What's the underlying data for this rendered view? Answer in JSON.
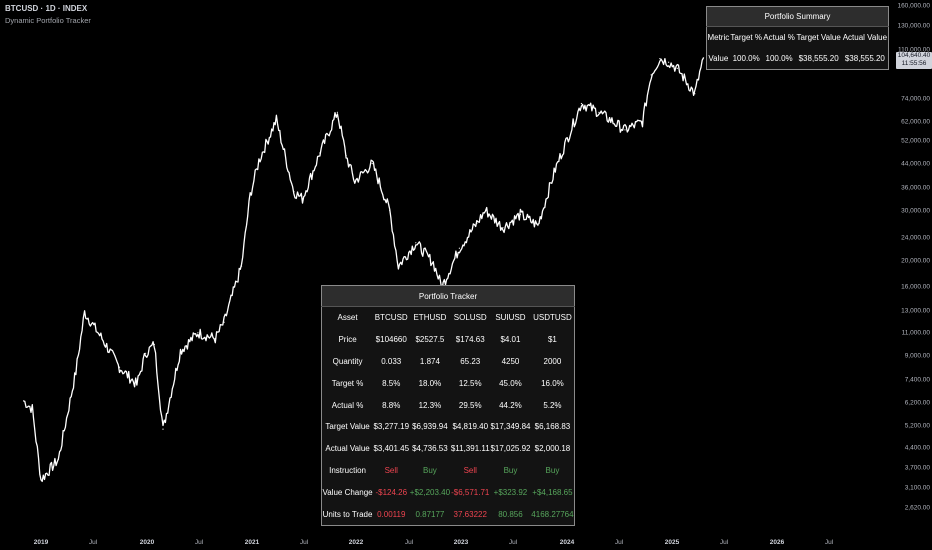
{
  "header": {
    "symbol_line": "BTCUSD · 1D · INDEX",
    "indicator_name": "Dynamic Portfolio Tracker"
  },
  "colors": {
    "background": "#000000",
    "price_line": "#ffffff",
    "sell": "#ef4450",
    "buy": "#57a65c",
    "table_bg": "#131313",
    "table_header_bg": "#2d2d2d"
  },
  "price_scale": {
    "ticks": [
      "160,000.00",
      "130,000.00",
      "110,000.00",
      "74,000.00",
      "62,000.00",
      "52,000.00",
      "44,000.00",
      "36,000.00",
      "30,000.00",
      "24,000.00",
      "20,000.00",
      "16,000.00",
      "13,000.00",
      "11,000.00",
      "9,000.00",
      "7,400.00",
      "6,200.00",
      "5,200.00",
      "4,400.00",
      "3,700.00",
      "3,100.00",
      "2,620.00"
    ],
    "last_price": "104,640.40",
    "countdown": "11:55:56"
  },
  "time_scale": {
    "ticks": [
      "2019",
      "Jul",
      "2020",
      "Jul",
      "2021",
      "Jul",
      "2022",
      "Jul",
      "2023",
      "Jul",
      "2024",
      "Jul",
      "2025",
      "Jul",
      "2026",
      "Jul"
    ]
  },
  "summary": {
    "title": "Portfolio Summary",
    "headers": [
      "Metric",
      "Target %",
      "Actual %",
      "Target Value",
      "Actual Value"
    ],
    "row": [
      "Value",
      "100.0%",
      "100.0%",
      "$38,555.20",
      "$38,555.20"
    ]
  },
  "tracker": {
    "title": "Portfolio Tracker",
    "headers": [
      "Asset",
      "BTCUSD",
      "ETHUSD",
      "SOLUSD",
      "SUIUSD",
      "USDTUSD"
    ],
    "rows": [
      [
        "Price",
        "$104660",
        "$2527.5",
        "$174.63",
        "$4.01",
        "$1"
      ],
      [
        "Quantity",
        "0.033",
        "1.874",
        "65.23",
        "4250",
        "2000"
      ],
      [
        "Target %",
        "8.5%",
        "18.0%",
        "12.5%",
        "45.0%",
        "16.0%"
      ],
      [
        "Actual %",
        "8.8%",
        "12.3%",
        "29.5%",
        "44.2%",
        "5.2%"
      ],
      [
        "Target Value",
        "$3,277.19",
        "$6,939.94",
        "$4,819.40",
        "$17,349.84",
        "$6,168.83"
      ],
      [
        "Actual Value",
        "$3,401.45",
        "$4,736.53",
        "$11,391.11",
        "$17,025.92",
        "$2,000.18"
      ],
      [
        "Instruction",
        "Sell",
        "Buy",
        "Sell",
        "Buy",
        "Buy"
      ],
      [
        "Value Change",
        "-$124.26",
        "+$2,203.40",
        "-$6,571.71",
        "+$323.92",
        "+$4,168.65"
      ],
      [
        "Units to Trade",
        "0.00119",
        "0.87177",
        "37.63222",
        "80.856",
        "4168.27764"
      ]
    ]
  },
  "chart_data": {
    "type": "line",
    "title": "BTCUSD · 1D · INDEX",
    "xlabel": "",
    "ylabel": "",
    "y_scale": "log",
    "ylim": [
      2620,
      160000
    ],
    "x": [
      "2018-11",
      "2018-12",
      "2019-01",
      "2019-03",
      "2019-05",
      "2019-06",
      "2019-08",
      "2019-10",
      "2019-12",
      "2020-01",
      "2020-02",
      "2020-03",
      "2020-05",
      "2020-07",
      "2020-09",
      "2020-10",
      "2020-12",
      "2021-01",
      "2021-02",
      "2021-04",
      "2021-06",
      "2021-07",
      "2021-09",
      "2021-11",
      "2021-12",
      "2022-01",
      "2022-03",
      "2022-05",
      "2022-06",
      "2022-08",
      "2022-10",
      "2022-11",
      "2023-01",
      "2023-03",
      "2023-04",
      "2023-06",
      "2023-08",
      "2023-10",
      "2023-12",
      "2024-03",
      "2024-05",
      "2024-08",
      "2024-10",
      "2024-11",
      "2024-12",
      "2025-01",
      "2025-02",
      "2025-04",
      "2025-05"
    ],
    "series": [
      {
        "values": [
          6300,
          5900,
          3300,
          3900,
          8000,
          13000,
          10500,
          8300,
          7200,
          9300,
          10000,
          5000,
          9500,
          11000,
          10500,
          12000,
          19000,
          34000,
          45000,
          63000,
          35000,
          33000,
          48000,
          67000,
          47000,
          38000,
          44000,
          30000,
          19000,
          23000,
          19500,
          16000,
          22000,
          27000,
          30000,
          26000,
          29000,
          26500,
          42000,
          72000,
          67000,
          58000,
          62000,
          91000,
          104000,
          101000,
          96000,
          78000,
          104640
        ]
      }
    ]
  }
}
